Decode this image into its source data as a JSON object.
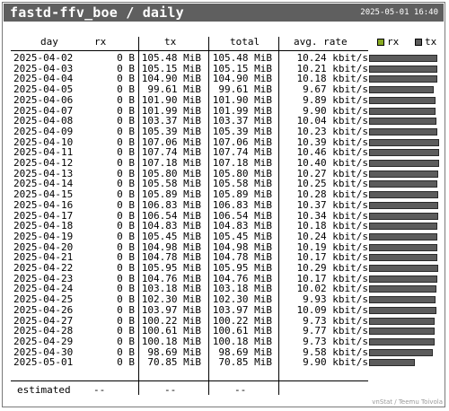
{
  "title": "fastd-ffv_boe / daily",
  "timestamp": "2025-05-01 16:40",
  "headers": {
    "day": "day",
    "rx": "rx",
    "tx": "tx",
    "total": "total",
    "rate": "avg. rate"
  },
  "legend": [
    {
      "label": "rx",
      "color": "#88aa22"
    },
    {
      "label": "tx",
      "color": "#5c5c5c"
    }
  ],
  "rows": [
    {
      "day": "2025-04-02",
      "rx": "0 B",
      "tx": "105.48 MiB",
      "total": "105.48 MiB",
      "rate": "10.24 kbit/s",
      "tx_value": 105.48
    },
    {
      "day": "2025-04-03",
      "rx": "0 B",
      "tx": "105.15 MiB",
      "total": "105.15 MiB",
      "rate": "10.21 kbit/s",
      "tx_value": 105.15
    },
    {
      "day": "2025-04-04",
      "rx": "0 B",
      "tx": "104.90 MiB",
      "total": "104.90 MiB",
      "rate": "10.18 kbit/s",
      "tx_value": 104.9
    },
    {
      "day": "2025-04-05",
      "rx": "0 B",
      "tx": "99.61 MiB",
      "total": "99.61 MiB",
      "rate": "9.67 kbit/s",
      "tx_value": 99.61
    },
    {
      "day": "2025-04-06",
      "rx": "0 B",
      "tx": "101.90 MiB",
      "total": "101.90 MiB",
      "rate": "9.89 kbit/s",
      "tx_value": 101.9
    },
    {
      "day": "2025-04-07",
      "rx": "0 B",
      "tx": "101.99 MiB",
      "total": "101.99 MiB",
      "rate": "9.90 kbit/s",
      "tx_value": 101.99
    },
    {
      "day": "2025-04-08",
      "rx": "0 B",
      "tx": "103.37 MiB",
      "total": "103.37 MiB",
      "rate": "10.04 kbit/s",
      "tx_value": 103.37
    },
    {
      "day": "2025-04-09",
      "rx": "0 B",
      "tx": "105.39 MiB",
      "total": "105.39 MiB",
      "rate": "10.23 kbit/s",
      "tx_value": 105.39
    },
    {
      "day": "2025-04-10",
      "rx": "0 B",
      "tx": "107.06 MiB",
      "total": "107.06 MiB",
      "rate": "10.39 kbit/s",
      "tx_value": 107.06
    },
    {
      "day": "2025-04-11",
      "rx": "0 B",
      "tx": "107.74 MiB",
      "total": "107.74 MiB",
      "rate": "10.46 kbit/s",
      "tx_value": 107.74
    },
    {
      "day": "2025-04-12",
      "rx": "0 B",
      "tx": "107.18 MiB",
      "total": "107.18 MiB",
      "rate": "10.40 kbit/s",
      "tx_value": 107.18
    },
    {
      "day": "2025-04-13",
      "rx": "0 B",
      "tx": "105.80 MiB",
      "total": "105.80 MiB",
      "rate": "10.27 kbit/s",
      "tx_value": 105.8
    },
    {
      "day": "2025-04-14",
      "rx": "0 B",
      "tx": "105.58 MiB",
      "total": "105.58 MiB",
      "rate": "10.25 kbit/s",
      "tx_value": 105.58
    },
    {
      "day": "2025-04-15",
      "rx": "0 B",
      "tx": "105.89 MiB",
      "total": "105.89 MiB",
      "rate": "10.28 kbit/s",
      "tx_value": 105.89
    },
    {
      "day": "2025-04-16",
      "rx": "0 B",
      "tx": "106.83 MiB",
      "total": "106.83 MiB",
      "rate": "10.37 kbit/s",
      "tx_value": 106.83
    },
    {
      "day": "2025-04-17",
      "rx": "0 B",
      "tx": "106.54 MiB",
      "total": "106.54 MiB",
      "rate": "10.34 kbit/s",
      "tx_value": 106.54
    },
    {
      "day": "2025-04-18",
      "rx": "0 B",
      "tx": "104.83 MiB",
      "total": "104.83 MiB",
      "rate": "10.18 kbit/s",
      "tx_value": 104.83
    },
    {
      "day": "2025-04-19",
      "rx": "0 B",
      "tx": "105.45 MiB",
      "total": "105.45 MiB",
      "rate": "10.24 kbit/s",
      "tx_value": 105.45
    },
    {
      "day": "2025-04-20",
      "rx": "0 B",
      "tx": "104.98 MiB",
      "total": "104.98 MiB",
      "rate": "10.19 kbit/s",
      "tx_value": 104.98
    },
    {
      "day": "2025-04-21",
      "rx": "0 B",
      "tx": "104.78 MiB",
      "total": "104.78 MiB",
      "rate": "10.17 kbit/s",
      "tx_value": 104.78
    },
    {
      "day": "2025-04-22",
      "rx": "0 B",
      "tx": "105.95 MiB",
      "total": "105.95 MiB",
      "rate": "10.29 kbit/s",
      "tx_value": 105.95
    },
    {
      "day": "2025-04-23",
      "rx": "0 B",
      "tx": "104.76 MiB",
      "total": "104.76 MiB",
      "rate": "10.17 kbit/s",
      "tx_value": 104.76
    },
    {
      "day": "2025-04-24",
      "rx": "0 B",
      "tx": "103.18 MiB",
      "total": "103.18 MiB",
      "rate": "10.02 kbit/s",
      "tx_value": 103.18
    },
    {
      "day": "2025-04-25",
      "rx": "0 B",
      "tx": "102.30 MiB",
      "total": "102.30 MiB",
      "rate": "9.93 kbit/s",
      "tx_value": 102.3
    },
    {
      "day": "2025-04-26",
      "rx": "0 B",
      "tx": "103.97 MiB",
      "total": "103.97 MiB",
      "rate": "10.09 kbit/s",
      "tx_value": 103.97
    },
    {
      "day": "2025-04-27",
      "rx": "0 B",
      "tx": "100.22 MiB",
      "total": "100.22 MiB",
      "rate": "9.73 kbit/s",
      "tx_value": 100.22
    },
    {
      "day": "2025-04-28",
      "rx": "0 B",
      "tx": "100.61 MiB",
      "total": "100.61 MiB",
      "rate": "9.77 kbit/s",
      "tx_value": 100.61
    },
    {
      "day": "2025-04-29",
      "rx": "0 B",
      "tx": "100.18 MiB",
      "total": "100.18 MiB",
      "rate": "9.73 kbit/s",
      "tx_value": 100.18
    },
    {
      "day": "2025-04-30",
      "rx": "0 B",
      "tx": "98.69 MiB",
      "total": "98.69 MiB",
      "rate": "9.58 kbit/s",
      "tx_value": 98.69
    },
    {
      "day": "2025-05-01",
      "rx": "0 B",
      "tx": "70.85 MiB",
      "total": "70.85 MiB",
      "rate": "9.90 kbit/s",
      "tx_value": 70.85
    }
  ],
  "estimated": {
    "label": "estimated",
    "rx": "--",
    "tx": "--",
    "total": "--"
  },
  "footer": "vnStat / Teemu Toivola"
}
